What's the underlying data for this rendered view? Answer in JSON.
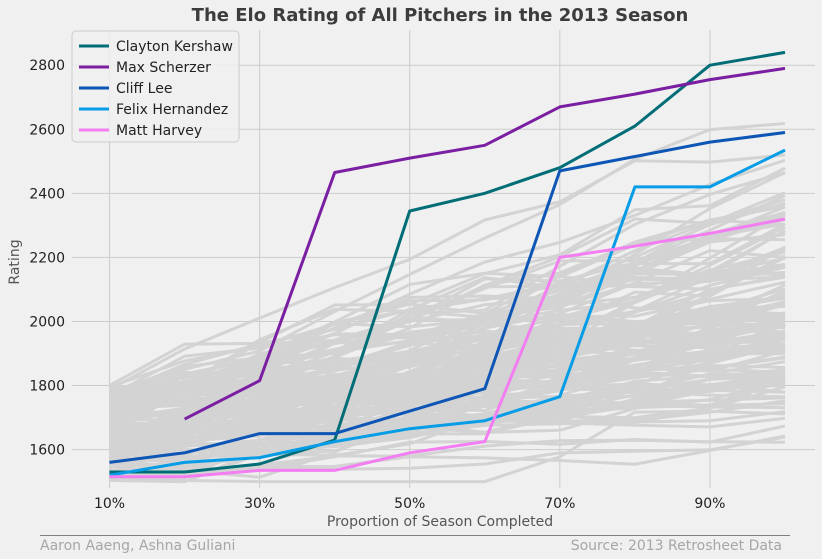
{
  "chart_data": {
    "type": "line",
    "title": "The Elo Rating of All Pitchers in the 2013 Season",
    "xlabel": "Proportion of Season Completed",
    "ylabel": "Rating",
    "x": [
      10,
      20,
      30,
      40,
      50,
      60,
      70,
      80,
      90,
      100
    ],
    "x_tick_labels": [
      "10%",
      "30%",
      "50%",
      "70%",
      "90%"
    ],
    "x_tick_values": [
      10,
      30,
      50,
      70,
      90
    ],
    "y_ticks": [
      1600,
      1800,
      2000,
      2200,
      2400,
      2600,
      2800
    ],
    "xlim": [
      5,
      104
    ],
    "ylim": [
      1480,
      2910
    ],
    "grid": true,
    "legend_position": "top-left",
    "background_series_color": "#d3d3d3",
    "series": [
      {
        "name": "Clayton Kershaw",
        "color": "#006d77",
        "values": [
          1530,
          1530,
          1555,
          1630,
          2345,
          2400,
          2480,
          2610,
          2800,
          2840
        ]
      },
      {
        "name": "Max Scherzer",
        "color": "#7b1fa2",
        "values": [
          null,
          1695,
          1815,
          2465,
          2510,
          2550,
          2670,
          2710,
          2755,
          2790
        ]
      },
      {
        "name": "Cliff Lee",
        "color": "#0d56b5",
        "values": [
          1560,
          1590,
          1650,
          1650,
          1720,
          1790,
          2470,
          2515,
          2560,
          2590
        ]
      },
      {
        "name": "Felix Hernandez",
        "color": "#069de6",
        "values": [
          1520,
          1560,
          1575,
          1625,
          1665,
          1690,
          1765,
          2420,
          2420,
          2535
        ]
      },
      {
        "name": "Matt Harvey",
        "color": "#f27ef2",
        "values": [
          1515,
          1515,
          1535,
          1535,
          1590,
          1625,
          2200,
          2235,
          2275,
          2320
        ]
      }
    ]
  },
  "footer": {
    "left": "Aaron Aaeng, Ashna Guliani",
    "right": "Source: 2013 Retrosheet Data"
  }
}
